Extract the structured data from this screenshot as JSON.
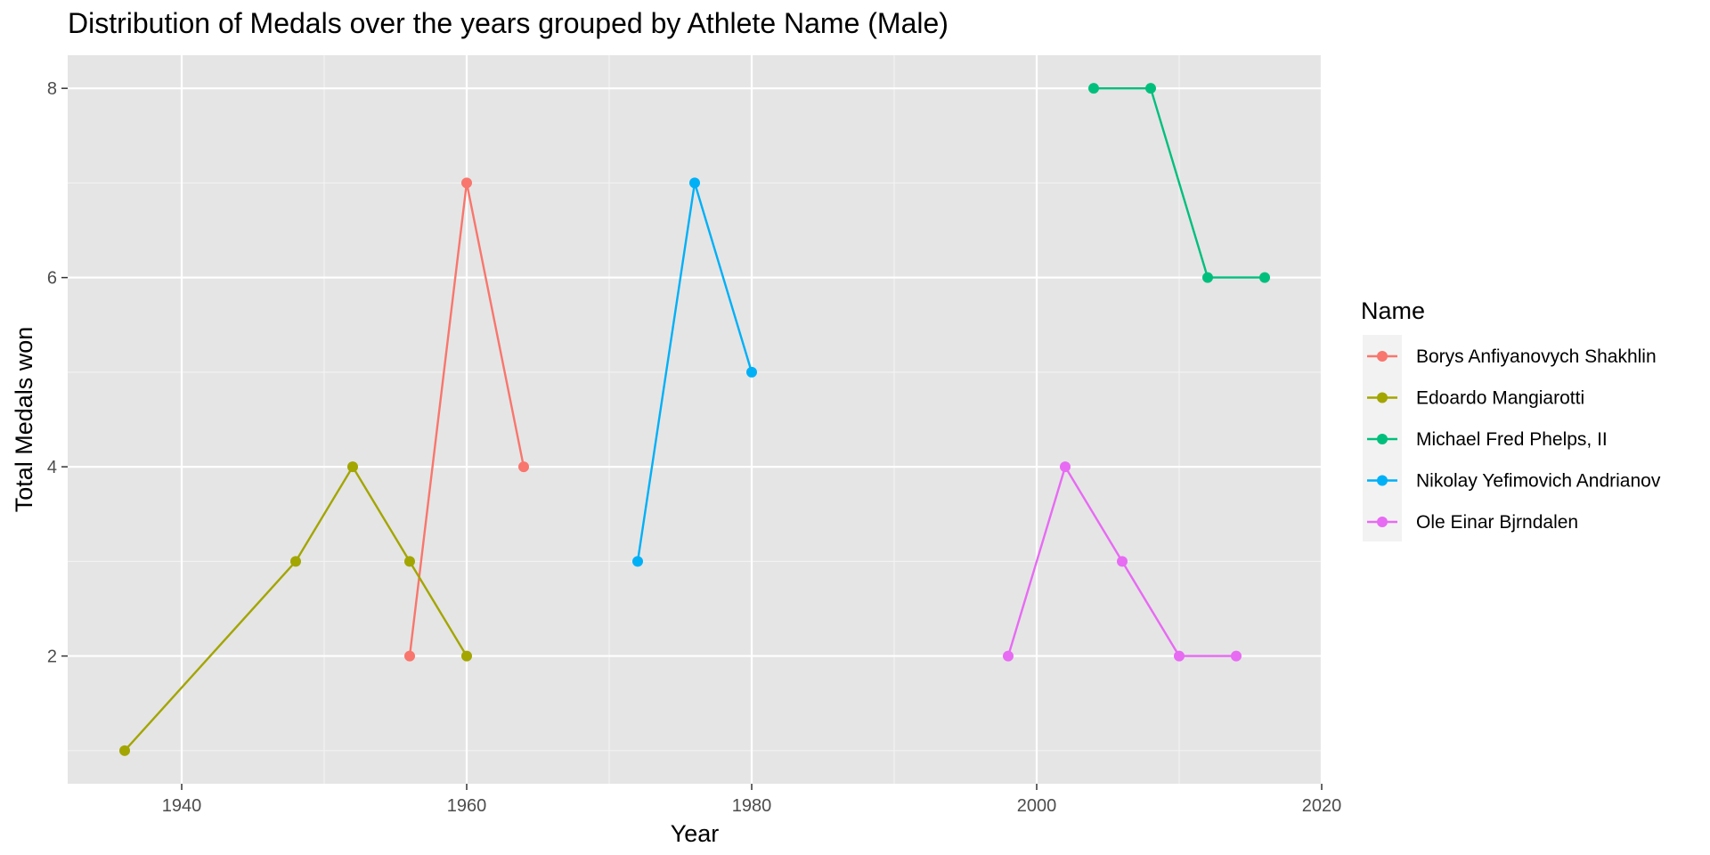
{
  "chart_data": {
    "type": "line",
    "title": "Distribution of Medals over the years grouped by Athlete Name (Male)",
    "xlabel": "Year",
    "ylabel": "Total Medals won",
    "xlim": [
      1932,
      2020
    ],
    "ylim": [
      0.65,
      8.35
    ],
    "x_ticks": [
      1940,
      1960,
      1980,
      2000,
      2020
    ],
    "y_ticks": [
      2,
      4,
      6,
      8
    ],
    "x_minor": [
      1950,
      1970,
      1990,
      2010
    ],
    "y_minor": [
      1,
      3,
      5,
      7
    ],
    "grid": true,
    "legend": {
      "title": "Name",
      "position": "right"
    },
    "series": [
      {
        "name": "Borys Anfiyanovych Shakhlin",
        "color": "#F8766D",
        "points": [
          [
            1956,
            2
          ],
          [
            1960,
            7
          ],
          [
            1964,
            4
          ]
        ]
      },
      {
        "name": "Edoardo Mangiarotti",
        "color": "#A3A500",
        "points": [
          [
            1936,
            1
          ],
          [
            1948,
            3
          ],
          [
            1952,
            4
          ],
          [
            1956,
            3
          ],
          [
            1960,
            2
          ]
        ]
      },
      {
        "name": "Michael Fred Phelps, II",
        "color": "#00BF7D",
        "points": [
          [
            2004,
            8
          ],
          [
            2008,
            8
          ],
          [
            2012,
            6
          ],
          [
            2016,
            6
          ]
        ]
      },
      {
        "name": "Nikolay Yefimovich Andrianov",
        "color": "#00B0F6",
        "points": [
          [
            1972,
            3
          ],
          [
            1976,
            7
          ],
          [
            1980,
            5
          ]
        ]
      },
      {
        "name": "Ole Einar Bjrndalen",
        "color": "#E76BF3",
        "points": [
          [
            1998,
            2
          ],
          [
            2002,
            4
          ],
          [
            2006,
            3
          ],
          [
            2010,
            2
          ],
          [
            2014,
            2
          ]
        ]
      }
    ]
  }
}
